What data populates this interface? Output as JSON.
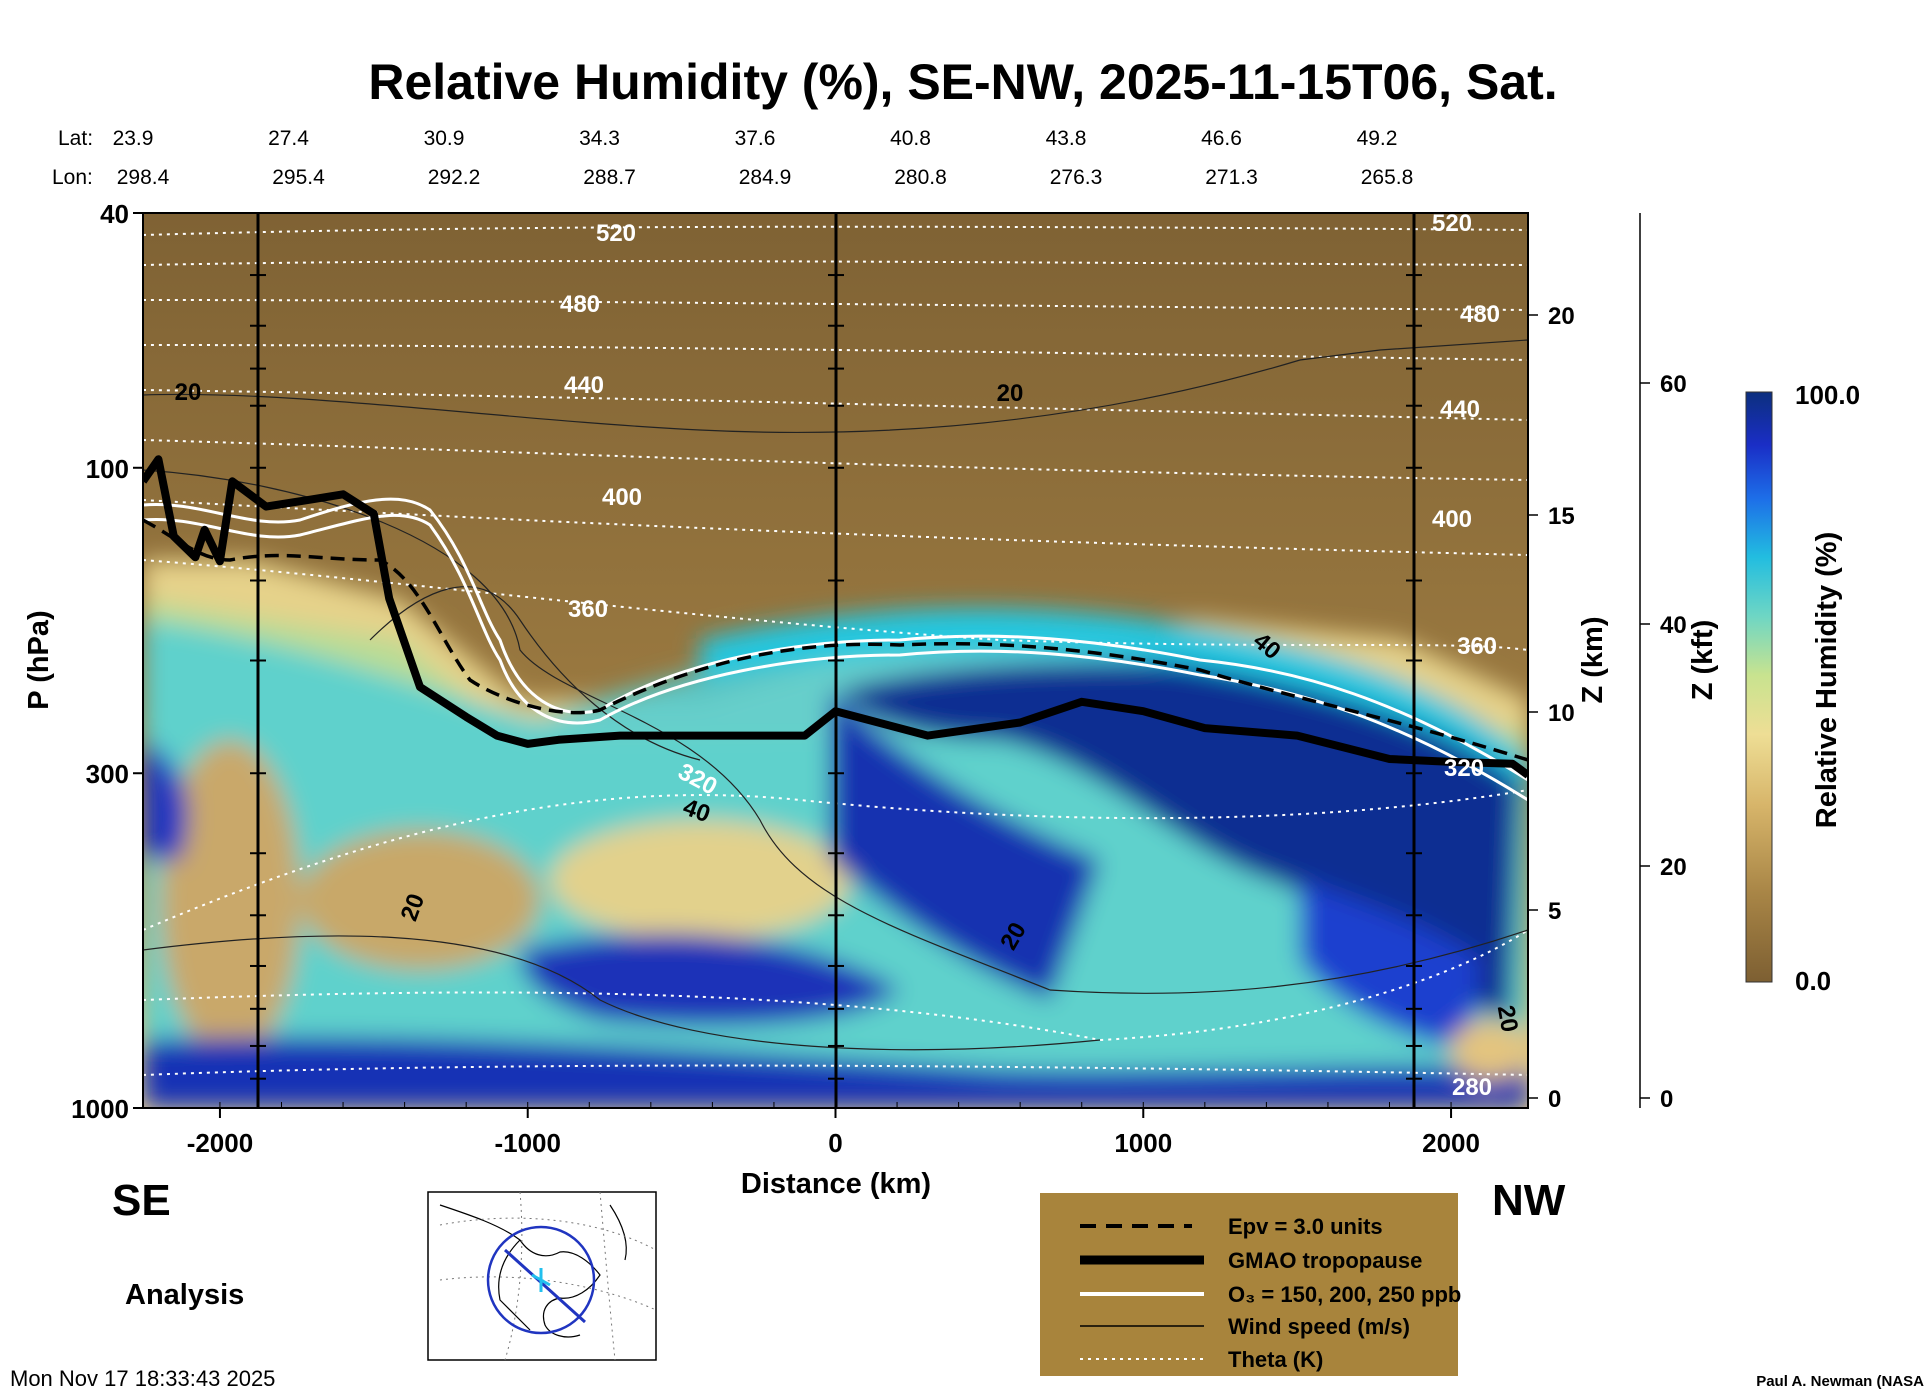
{
  "chart_data": {
    "type": "heatmap",
    "title": "Relative Humidity (%), SE-NW, 2025-11-15T06, Sat.",
    "xlabel": "Distance (km)",
    "ylabel": "P (hPa)",
    "xlim": [
      -2250,
      2250
    ],
    "ylim": [
      1000,
      40
    ],
    "x_ticks": [
      "-2000",
      "-1000",
      "0",
      "1000",
      "2000"
    ],
    "x_tick_values": [
      -2000,
      -1000,
      0,
      1000,
      2000
    ],
    "y_ticks": [
      "40",
      "100",
      "300",
      "1000"
    ],
    "y_tick_values": [
      40,
      100,
      300,
      1000
    ],
    "lat_label": "Lat:",
    "lon_label": "Lon:",
    "lat_values": [
      "23.9",
      "27.4",
      "30.9",
      "34.3",
      "37.6",
      "40.8",
      "43.8",
      "46.6",
      "49.2"
    ],
    "lon_values": [
      "298.4",
      "295.4",
      "292.2",
      "288.7",
      "284.9",
      "280.8",
      "276.3",
      "271.3",
      "265.8"
    ],
    "z_km_label": "Z (km)",
    "z_km_ticks": [
      "0",
      "5",
      "10",
      "15",
      "20"
    ],
    "z_kft_label": "Z (kft)",
    "z_kft_ticks": [
      "0",
      "20",
      "40",
      "60"
    ],
    "colorbar": {
      "label": "Relative Humidity (%)",
      "min": "0.0",
      "max": "100.0"
    },
    "theta_contours_K": [
      "520",
      "480",
      "440",
      "400",
      "360",
      "320",
      "280"
    ],
    "wind_contours_ms": [
      "20",
      "40"
    ],
    "tropopause_profile": {
      "x": [
        -2250,
        -2200,
        -2150,
        -2080,
        -2050,
        -2000,
        -1960,
        -1850,
        -1700,
        -1600,
        -1500,
        -1450,
        -1350,
        -1200,
        -1100,
        -1000,
        -900,
        -700,
        -400,
        -100,
        0,
        300,
        600,
        800,
        1000,
        1200,
        1500,
        1800,
        2000,
        2200,
        2250
      ],
      "p": [
        105,
        97,
        128,
        138,
        125,
        140,
        105,
        115,
        112,
        110,
        118,
        160,
        220,
        245,
        262,
        270,
        266,
        262,
        262,
        262,
        240,
        262,
        250,
        232,
        240,
        255,
        262,
        285,
        288,
        290,
        302
      ]
    },
    "markers": {
      "left": "SE",
      "right": "NW"
    },
    "annotation": "Analysis"
  },
  "legend": {
    "items": [
      "Epv = 3.0 units",
      "GMAO tropopause",
      "O₃ = 150, 200, 250 ppb",
      "Wind speed (m/s)",
      "Theta (K)"
    ]
  },
  "footer": {
    "timestamp": "Mon Nov 17 18:33:43 2025",
    "credit": "Paul A. Newman (NASA"
  },
  "colors": {
    "dry": "#8a6a3c",
    "moist": "#0c2f8a",
    "legend_bg": "#a8843c"
  }
}
